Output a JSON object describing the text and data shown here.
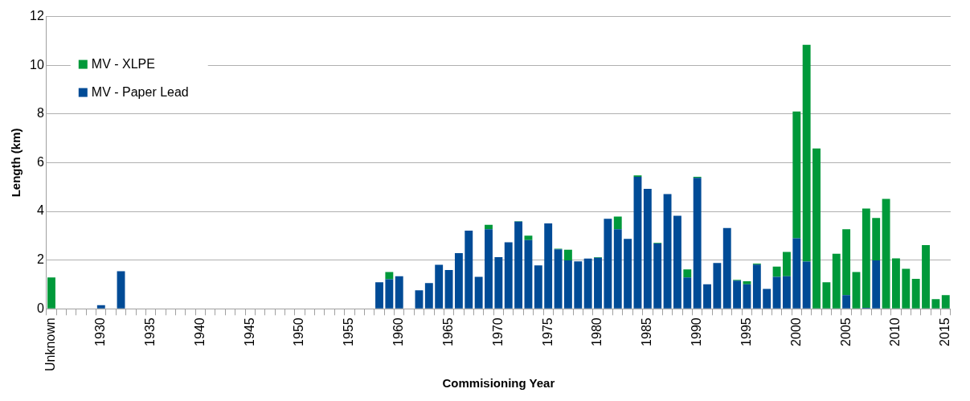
{
  "chart_data": {
    "type": "bar",
    "stacked": true,
    "xlabel": "Commisioning Year",
    "ylabel": "Length (km)",
    "categories": [
      "Unknown",
      null,
      null,
      null,
      null,
      "1930",
      null,
      null,
      null,
      null,
      "1935",
      null,
      null,
      null,
      null,
      "1940",
      null,
      null,
      null,
      null,
      "1945",
      null,
      null,
      null,
      null,
      "1950",
      null,
      null,
      null,
      null,
      "1955",
      null,
      null,
      null,
      null,
      "1960",
      null,
      null,
      null,
      null,
      "1965",
      null,
      null,
      null,
      null,
      "1970",
      null,
      null,
      null,
      null,
      "1975",
      null,
      null,
      null,
      null,
      "1980",
      null,
      null,
      null,
      null,
      "1985",
      null,
      null,
      null,
      null,
      "1990",
      null,
      null,
      null,
      null,
      "1995",
      null,
      null,
      null,
      null,
      "2000",
      null,
      null,
      null,
      null,
      "2005",
      null,
      null,
      null,
      null,
      "2010",
      null,
      null,
      null,
      null,
      "2015"
    ],
    "series": [
      {
        "name": "MV - Paper Lead",
        "color": "#004b96",
        "values": [
          0,
          0,
          0,
          0,
          0,
          0.15,
          0,
          1.54,
          0,
          0,
          0,
          0,
          0,
          0,
          0,
          0,
          0,
          0,
          0,
          0,
          0,
          0,
          0,
          0,
          0,
          0,
          0,
          0,
          0,
          0,
          0,
          0,
          0,
          1.09,
          1.21,
          1.34,
          0,
          0.76,
          1.06,
          1.81,
          1.59,
          2.29,
          3.21,
          1.31,
          3.27,
          2.12,
          2.73,
          3.58,
          2.82,
          1.78,
          3.51,
          2.44,
          1.99,
          1.95,
          2.06,
          2.1,
          3.7,
          3.27,
          2.87,
          5.42,
          4.93,
          2.68,
          4.71,
          3.82,
          1.29,
          5.38,
          1.01,
          1.88,
          3.32,
          1.16,
          1.01,
          1.82,
          0.82,
          1.31,
          1.34,
          2.9,
          1.94,
          0,
          0,
          0,
          0.56,
          0,
          0.04,
          1.99,
          0,
          0,
          0,
          0,
          0,
          0,
          0
        ]
      },
      {
        "name": "MV - XLPE",
        "color": "#00993a",
        "values": [
          1.29,
          0,
          0,
          0,
          0,
          0,
          0,
          0,
          0,
          0,
          0,
          0,
          0,
          0,
          0,
          0,
          0,
          0,
          0,
          0,
          0,
          0,
          0,
          0,
          0,
          0,
          0,
          0,
          0,
          0,
          0,
          0,
          0,
          0,
          0.3,
          0,
          0,
          0,
          0,
          0,
          0,
          0,
          0,
          0,
          0.18,
          0,
          0,
          0.02,
          0.18,
          0,
          0,
          0.03,
          0.44,
          0,
          0,
          0.02,
          0,
          0.52,
          0,
          0.06,
          0,
          0.03,
          0,
          0,
          0.33,
          0.04,
          0,
          0,
          0,
          0.03,
          0.12,
          0.04,
          0,
          0.42,
          1.0,
          5.2,
          8.9,
          6.58,
          1.09,
          2.26,
          2.71,
          1.51,
          4.08,
          1.74,
          4.51,
          2.07,
          1.64,
          1.23,
          2.62,
          0.4,
          0.56
        ]
      }
    ],
    "ylim": [
      0,
      12
    ],
    "yticks": [
      0,
      2,
      4,
      6,
      8,
      10,
      12
    ],
    "grid": "y",
    "legend": "top left"
  }
}
